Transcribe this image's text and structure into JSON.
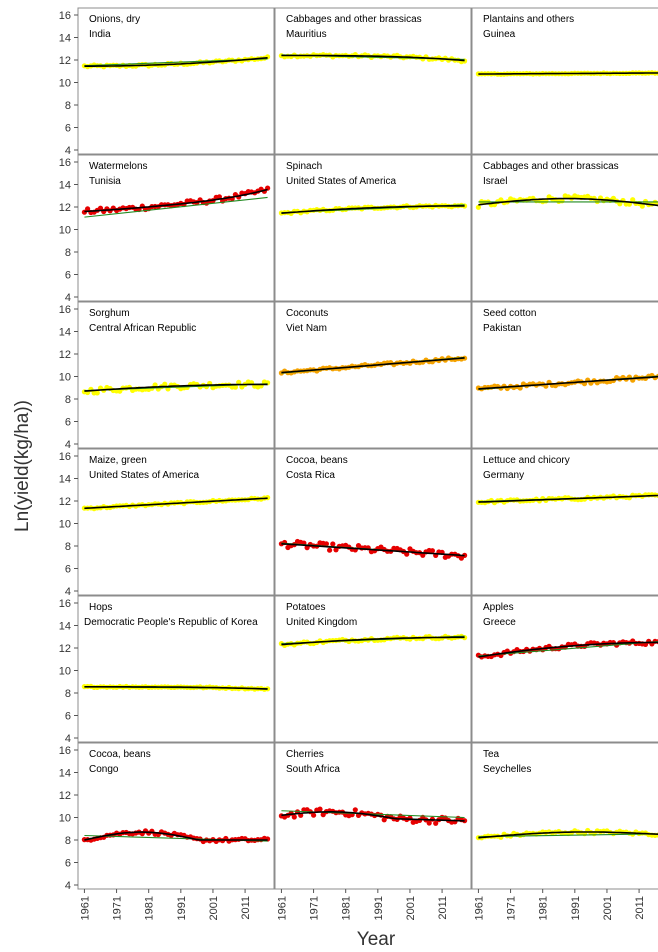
{
  "chart_data": {
    "type": "scatter",
    "title": "",
    "xlabel": "Year",
    "ylabel": "Ln(yield(kg/ha))",
    "xlim": [
      1959,
      2020
    ],
    "ylim": [
      4,
      16
    ],
    "x_ticks": [
      1961,
      1971,
      1981,
      1991,
      2001,
      2011
    ],
    "y_ticks": [
      4,
      6,
      8,
      10,
      12,
      14,
      16
    ],
    "layout": "6 rows x 3 columns of panels with shared axes",
    "grid": false,
    "legend": "none",
    "colors": {
      "yellow": "#ffff00",
      "orange": "#f5a300",
      "red": "#e60000",
      "smooth_line": "#000000",
      "linear_fit": "#228b22"
    },
    "panels": [
      {
        "crop": "Onions, dry",
        "country": "India",
        "point_color": "yellow",
        "start": 11.45,
        "end": 12.2,
        "curve": "slow-rise",
        "noise": 0.1,
        "linear": [
          11.5,
          12.1
        ]
      },
      {
        "crop": "Cabbages and other brassicas",
        "country": "Mauritius",
        "point_color": "yellow",
        "start": 12.4,
        "end": 11.95,
        "curve": "flat-then-fall",
        "noise": 0.12,
        "linear": [
          12.45,
          12.05
        ]
      },
      {
        "crop": "Plantains and others",
        "country": "Guinea",
        "point_color": "yellow",
        "start": 10.75,
        "end": 10.85,
        "curve": "linear",
        "noise": 0.03,
        "linear": [
          10.75,
          10.85
        ]
      },
      {
        "crop": "Watermelons",
        "country": "Tunisia",
        "point_color": "red",
        "start": 11.6,
        "end": 13.7,
        "curve": "wave-rise",
        "noise": 0.22,
        "linear": [
          11.1,
          12.85
        ]
      },
      {
        "crop": "Spinach",
        "country": "United States of America",
        "point_color": "yellow",
        "start": 11.45,
        "end": 12.1,
        "curve": "rise-plateau",
        "noise": 0.1,
        "linear": [
          11.5,
          12.2
        ]
      },
      {
        "crop": "Cabbages and other brassicas",
        "country": "Israel",
        "point_color": "yellow",
        "start": 12.2,
        "end": 12.1,
        "curve": "hump",
        "peak": 12.75,
        "noise": 0.25,
        "linear": [
          12.45,
          12.45
        ]
      },
      {
        "crop": "Sorghum",
        "country": "Central African Republic",
        "point_color": "yellow",
        "start": 8.7,
        "end": 9.3,
        "curve": "rise-plateau",
        "noise": 0.25,
        "linear": [
          8.75,
          9.35
        ]
      },
      {
        "crop": "Coconuts",
        "country": "Viet Nam",
        "point_color": "orange",
        "start": 10.35,
        "end": 11.65,
        "curve": "linear",
        "noise": 0.12,
        "linear": [
          10.3,
          11.7
        ]
      },
      {
        "crop": "Seed cotton",
        "country": "Pakistan",
        "point_color": "orange",
        "start": 8.9,
        "end": 10.0,
        "curve": "linear",
        "noise": 0.18,
        "linear": [
          8.85,
          10.05
        ]
      },
      {
        "crop": "Maize, green",
        "country": "United States of America",
        "point_color": "yellow",
        "start": 11.35,
        "end": 12.25,
        "curve": "linear",
        "noise": 0.08,
        "linear": [
          11.35,
          12.25
        ]
      },
      {
        "crop": "Cocoa, beans",
        "country": "Costa Rica",
        "point_color": "red",
        "start": 8.2,
        "end": 7.15,
        "curve": "linear",
        "noise": 0.3,
        "linear": [
          8.25,
          7.15
        ]
      },
      {
        "crop": "Lettuce and chicory",
        "country": "Germany",
        "point_color": "yellow",
        "start": 11.9,
        "end": 12.5,
        "curve": "linear",
        "noise": 0.12,
        "linear": [
          11.95,
          12.5
        ]
      },
      {
        "crop": "Hops",
        "country": "Democratic People's Republic of Korea",
        "point_color": "yellow",
        "start": 8.55,
        "end": 8.35,
        "curve": "flat-then-fall",
        "noise": 0.05,
        "linear": [
          8.55,
          8.4
        ]
      },
      {
        "crop": "Potatoes",
        "country": "United Kingdom",
        "point_color": "yellow",
        "start": 12.3,
        "end": 12.95,
        "curve": "rise-plateau",
        "noise": 0.12,
        "linear": [
          12.4,
          13.05
        ]
      },
      {
        "crop": "Apples",
        "country": "Greece",
        "point_color": "red",
        "start": 11.2,
        "end": 12.5,
        "curve": "rise-plateau",
        "noise": 0.18,
        "linear": [
          11.3,
          12.6
        ]
      },
      {
        "crop": "Cocoa, beans",
        "country": "Congo",
        "point_color": "red",
        "start": 8.0,
        "end": 8.0,
        "curve": "hump-early",
        "peak": 8.7,
        "noise": 0.15,
        "linear": [
          8.4,
          7.9
        ]
      },
      {
        "crop": "Cherries",
        "country": "South Africa",
        "point_color": "red",
        "start": 10.2,
        "end": 9.7,
        "curve": "hump-early",
        "peak": 10.65,
        "noise": 0.3,
        "linear": [
          10.6,
          10.0
        ]
      },
      {
        "crop": "Tea",
        "country": "Seychelles",
        "point_color": "yellow",
        "start": 8.2,
        "end": 8.5,
        "curve": "hump",
        "peak": 8.7,
        "noise": 0.15,
        "linear": [
          8.3,
          8.55
        ]
      }
    ]
  }
}
